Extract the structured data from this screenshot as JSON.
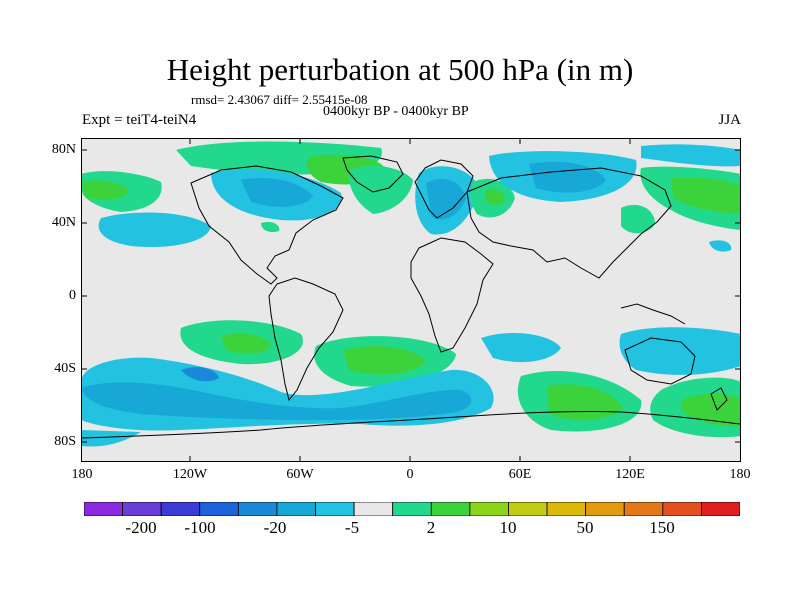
{
  "title": "Height perturbation at 500 hPa (in m)",
  "stats": "rmsd= 2.43067 diff= 2.55415e-08",
  "period": "0400kyr BP - 0400kyr BP",
  "expt": "Expt = teiT4-teiN4",
  "season": "JJA",
  "axes": {
    "lat_labels": [
      "80N",
      "40N",
      "0",
      "40S",
      "80S"
    ],
    "lon_labels": [
      "180",
      "120W",
      "60W",
      "0",
      "60E",
      "120E",
      "180"
    ]
  },
  "colorbar": {
    "colors": [
      "#8a2be2",
      "#6a3fd8",
      "#3c3cd6",
      "#1c63dc",
      "#1a88d8",
      "#18a8d8",
      "#22c2e0",
      "#e8e8e8",
      "#22d88c",
      "#3cd23c",
      "#8cd41a",
      "#c2cc12",
      "#dcb808",
      "#e49a10",
      "#e47818",
      "#e45020",
      "#e02020"
    ],
    "labels": [
      "-200",
      "-100",
      "-20",
      "-5",
      "2",
      "10",
      "50",
      "150"
    ]
  },
  "map": {
    "background": "#e8e8e8",
    "coastline_color": "#000000",
    "fill_colors": {
      "light_cyan": "#22c2e0",
      "cyan": "#18a8d8",
      "mint": "#22d88c",
      "green": "#3cd23c",
      "blue": "#1a88d8"
    }
  }
}
